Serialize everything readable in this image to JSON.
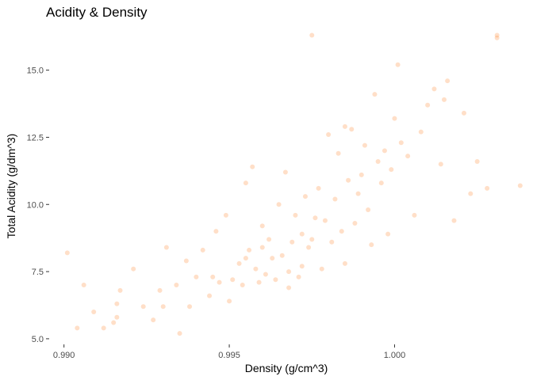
{
  "chart_data": {
    "type": "scatter",
    "title": "Acidity & Density",
    "xlabel": "Density (g/cm^3)",
    "ylabel": "Total Acidity (g/dm^3)",
    "xlim": [
      0.9896,
      1.0039
    ],
    "ylim": [
      4.85,
      16.55
    ],
    "xticks": [
      0.99,
      0.995,
      1.0
    ],
    "xtick_labels": [
      "0.990",
      "0.995",
      "1.000"
    ],
    "yticks": [
      5.0,
      7.5,
      10.0,
      12.5,
      15.0
    ],
    "ytick_labels": [
      "5.0",
      "7.5",
      "10.0",
      "12.5",
      "15.0"
    ],
    "grid": false,
    "legend": "none",
    "point_color": "#ff7f24",
    "point_opacity": 0.25,
    "series": [
      {
        "x": [
          0.9901,
          0.9904,
          0.9906,
          0.9909,
          0.9912,
          0.9915,
          0.9916,
          0.9916,
          0.9917,
          0.9921,
          0.9924,
          0.9927,
          0.9929,
          0.9931,
          0.9934,
          0.9935,
          0.9937,
          0.9938,
          0.994,
          0.9942,
          0.9944,
          0.9946,
          0.9947,
          0.9949,
          0.995,
          0.9951,
          0.9953,
          0.9954,
          0.9955,
          0.9956,
          0.9957,
          0.9958,
          0.9959,
          0.996,
          0.9961,
          0.9962,
          0.9963,
          0.9964,
          0.9965,
          0.9966,
          0.9967,
          0.9968,
          0.9969,
          0.997,
          0.9971,
          0.9972,
          0.9973,
          0.9974,
          0.9975,
          0.9976,
          0.9977,
          0.9978,
          0.9979,
          0.998,
          0.9981,
          0.9982,
          0.9983,
          0.9984,
          0.9985,
          0.9986,
          0.9987,
          0.9988,
          0.9989,
          0.999,
          0.9991,
          0.9992,
          0.9993,
          0.9994,
          0.9995,
          0.9996,
          0.9997,
          0.9998,
          0.9999,
          1.0,
          1.0001,
          1.0002,
          1.0004,
          1.0006,
          1.0008,
          1.001,
          1.0012,
          1.0014,
          1.0016,
          1.0018,
          1.0021,
          1.0023,
          1.0025,
          1.0028,
          1.0031,
          1.0031,
          1.0038,
          0.9975,
          0.9985,
          1.0015,
          0.993,
          0.9945,
          0.996,
          0.9972,
          0.9968,
          0.9955
        ],
        "y": [
          8.2,
          5.4,
          7.0,
          6.0,
          5.4,
          5.6,
          6.3,
          5.8,
          6.8,
          7.6,
          6.2,
          5.7,
          6.8,
          8.4,
          7.0,
          5.2,
          7.9,
          6.2,
          7.3,
          8.3,
          6.6,
          9.0,
          7.1,
          9.6,
          6.4,
          7.2,
          7.8,
          7.0,
          10.8,
          8.3,
          11.4,
          7.6,
          7.1,
          9.2,
          7.4,
          8.7,
          8.0,
          7.2,
          10.0,
          8.1,
          11.2,
          7.5,
          8.6,
          9.6,
          7.3,
          8.9,
          10.3,
          8.4,
          8.7,
          9.5,
          10.6,
          7.6,
          9.4,
          12.6,
          8.6,
          10.2,
          11.9,
          9.0,
          7.8,
          10.9,
          12.8,
          9.3,
          10.4,
          11.1,
          12.2,
          9.8,
          8.5,
          14.1,
          11.6,
          10.8,
          12.0,
          8.9,
          11.3,
          13.2,
          15.2,
          12.3,
          11.8,
          9.6,
          12.7,
          13.7,
          14.3,
          11.5,
          14.6,
          9.4,
          13.4,
          10.4,
          11.6,
          10.6,
          16.2,
          16.3,
          10.7,
          16.3,
          12.9,
          13.9,
          6.2,
          7.3,
          8.4,
          7.7,
          6.9,
          8.0
        ]
      }
    ]
  }
}
